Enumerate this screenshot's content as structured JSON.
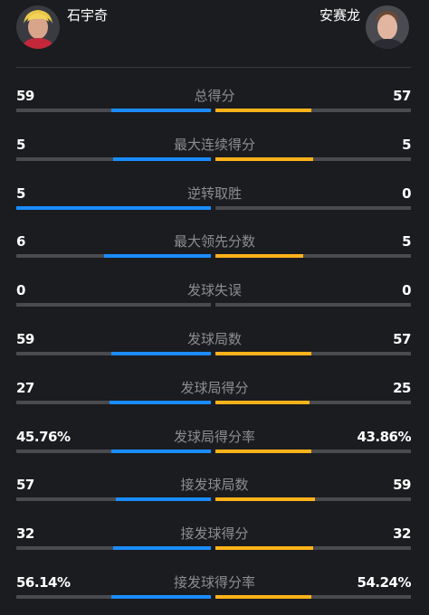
{
  "players": {
    "left": {
      "name": "石宇奇"
    },
    "right": {
      "name": "安赛龙"
    }
  },
  "colors": {
    "left_bar": "#1a8cff",
    "right_bar": "#ffb21a",
    "track": "#4a4b4f",
    "background": "#1b1c1f",
    "label": "#8c8d91"
  },
  "stats": [
    {
      "label": "总得分",
      "left": "59",
      "right": "57",
      "left_share": 0.51,
      "right_share": 0.49
    },
    {
      "label": "最大连续得分",
      "left": "5",
      "right": "5",
      "left_share": 0.5,
      "right_share": 0.5
    },
    {
      "label": "逆转取胜",
      "left": "5",
      "right": "0",
      "left_share": 1.0,
      "right_share": 0.0
    },
    {
      "label": "最大领先分数",
      "left": "6",
      "right": "5",
      "left_share": 0.55,
      "right_share": 0.45
    },
    {
      "label": "发球失误",
      "left": "0",
      "right": "0",
      "left_share": 0.0,
      "right_share": 0.0
    },
    {
      "label": "发球局数",
      "left": "59",
      "right": "57",
      "left_share": 0.51,
      "right_share": 0.49
    },
    {
      "label": "发球局得分",
      "left": "27",
      "right": "25",
      "left_share": 0.52,
      "right_share": 0.48
    },
    {
      "label": "发球局得分率",
      "left": "45.76%",
      "right": "43.86%",
      "left_share": 0.51,
      "right_share": 0.49
    },
    {
      "label": "接发球局数",
      "left": "57",
      "right": "59",
      "left_share": 0.49,
      "right_share": 0.51
    },
    {
      "label": "接发球得分",
      "left": "32",
      "right": "32",
      "left_share": 0.5,
      "right_share": 0.5
    },
    {
      "label": "接发球得分率",
      "left": "56.14%",
      "right": "54.24%",
      "left_share": 0.51,
      "right_share": 0.49
    }
  ]
}
